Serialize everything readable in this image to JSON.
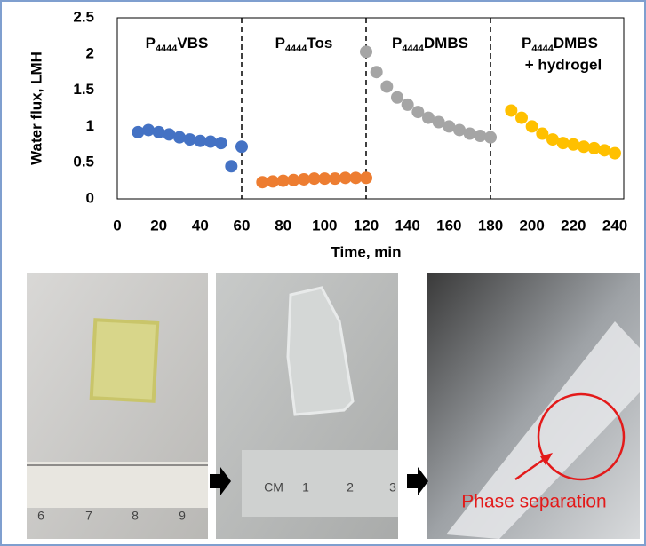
{
  "chart_data": {
    "type": "scatter",
    "xlabel": "Time, min",
    "ylabel": "Water flux, LMH",
    "xlim": [
      0,
      240
    ],
    "xticks": [
      0,
      20,
      40,
      60,
      80,
      100,
      120,
      140,
      160,
      180,
      200,
      220,
      240
    ],
    "ylim": [
      0,
      2.5
    ],
    "yticks": [
      0,
      0.5,
      1,
      1.5,
      2,
      2.5
    ],
    "dividers": [
      60,
      120,
      180
    ],
    "segments": [
      {
        "prefix": "P",
        "sub": "4444",
        "suffix": "VBS"
      },
      {
        "prefix": "P",
        "sub": "4444",
        "suffix": "Tos"
      },
      {
        "prefix": "P",
        "sub": "4444",
        "suffix": "DMBS"
      },
      {
        "prefix": "P",
        "sub": "4444",
        "suffix": "DMBS",
        "line2": "+ hydrogel"
      }
    ],
    "series": [
      {
        "color": "#4472c4",
        "x": [
          10,
          15,
          20,
          25,
          30,
          35,
          40,
          45,
          50,
          55,
          60
        ],
        "values": [
          0.92,
          0.95,
          0.92,
          0.89,
          0.85,
          0.82,
          0.8,
          0.79,
          0.77,
          0.45,
          0.72
        ]
      },
      {
        "color": "#ed7d31",
        "x": [
          70,
          75,
          80,
          85,
          90,
          95,
          100,
          105,
          110,
          115,
          120
        ],
        "values": [
          0.23,
          0.24,
          0.25,
          0.26,
          0.27,
          0.28,
          0.28,
          0.28,
          0.29,
          0.29,
          0.29
        ]
      },
      {
        "color": "#a5a5a5",
        "x": [
          120,
          125,
          130,
          135,
          140,
          145,
          150,
          155,
          160,
          165,
          170,
          175,
          180
        ],
        "values": [
          2.03,
          1.75,
          1.55,
          1.4,
          1.3,
          1.2,
          1.12,
          1.06,
          1.0,
          0.95,
          0.9,
          0.87,
          0.85
        ]
      },
      {
        "color": "#ffc000",
        "x": [
          190,
          195,
          200,
          205,
          210,
          215,
          220,
          225,
          230,
          235,
          240
        ],
        "values": [
          1.22,
          1.12,
          1.0,
          0.9,
          0.82,
          0.77,
          0.75,
          0.72,
          0.7,
          0.67,
          0.63
        ]
      }
    ]
  },
  "photos": {
    "ruler1": [
      "6",
      "7",
      "8",
      "9"
    ],
    "ruler2": [
      "CM",
      "1",
      "2",
      "3"
    ],
    "annotation": "Phase separation"
  }
}
